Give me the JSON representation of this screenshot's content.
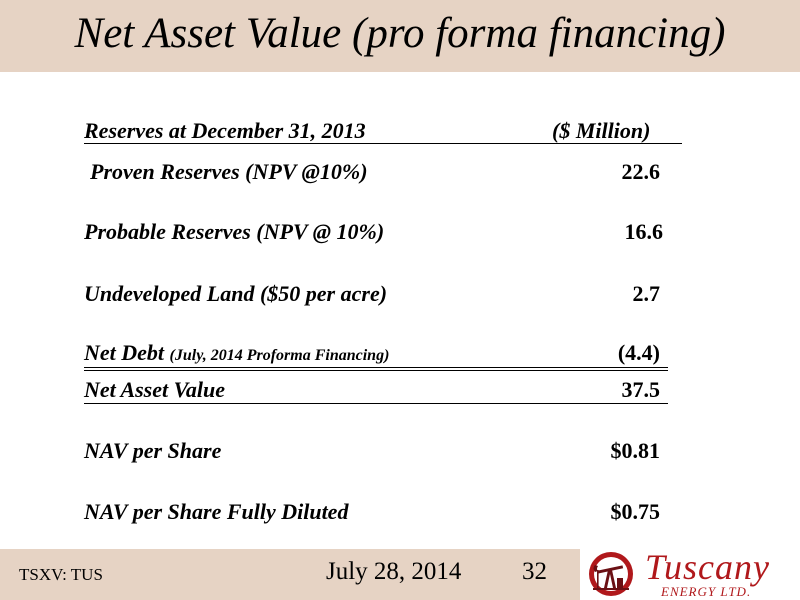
{
  "slide": {
    "title": "Net Asset Value (pro forma financing)"
  },
  "table": {
    "header_label": "Reserves at December 31, 2013",
    "header_unit": "($ Million)",
    "rows": [
      {
        "label": "Proven Reserves (NPV @10%)",
        "note": "",
        "value": "22.6"
      },
      {
        "label": "Probable Reserves (NPV @ 10%)",
        "note": "",
        "value": "16.6"
      },
      {
        "label": "Undeveloped Land ($50 per acre)",
        "note": "",
        "value": "2.7"
      },
      {
        "label": "Net Debt",
        "note": "(July, 2014 Proforma Financing)",
        "value": "(4.4)"
      },
      {
        "label": "Net Asset Value",
        "note": "",
        "value": "37.5"
      },
      {
        "label": "NAV per Share",
        "note": "",
        "value": "$0.81"
      },
      {
        "label": "NAV per Share Fully Diluted",
        "note": "",
        "value": "$0.75"
      }
    ]
  },
  "footer": {
    "ticker": "TSXV: TUS",
    "date": "July 28, 2014",
    "page": "32"
  },
  "logo": {
    "name": "Tuscany",
    "subtitle": "ENERGY LTD.",
    "brand_color": "#b0181b",
    "icon": "pumpjack-icon"
  },
  "colors": {
    "band": "#e6d3c4"
  }
}
